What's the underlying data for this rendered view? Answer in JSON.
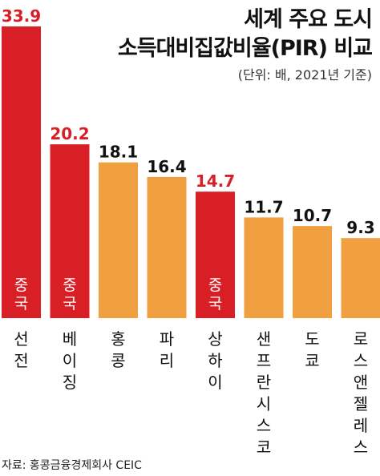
{
  "chart_data": {
    "type": "bar",
    "title_lines": [
      "세계 주요 도시",
      "소득대비집값비율(PIR) 비교"
    ],
    "unit_note": "(단위: 배, 2021년 기준)",
    "source": "자료: 홍콩금융경제회사 CEIC",
    "categories": [
      "선전",
      "베이징",
      "홍콩",
      "파리",
      "상하이",
      "샌프란시스코",
      "도쿄",
      "로스앤젤레스"
    ],
    "values": [
      33.9,
      20.2,
      18.1,
      16.4,
      14.7,
      11.7,
      10.7,
      9.3
    ],
    "value_labels": [
      "33.9",
      "20.2",
      "18.1",
      "16.4",
      "14.7",
      "11.7",
      "10.7",
      "9.3"
    ],
    "highlight": [
      true,
      true,
      false,
      false,
      true,
      false,
      false,
      false
    ],
    "bar_inner_label": "중국",
    "colors": {
      "highlight": "#d81f26",
      "normal": "#f0a040",
      "highlight_text": "#d81f26",
      "normal_text": "#111111",
      "inner_text": "#ffffff"
    },
    "ylim": [
      0,
      33.9
    ]
  }
}
